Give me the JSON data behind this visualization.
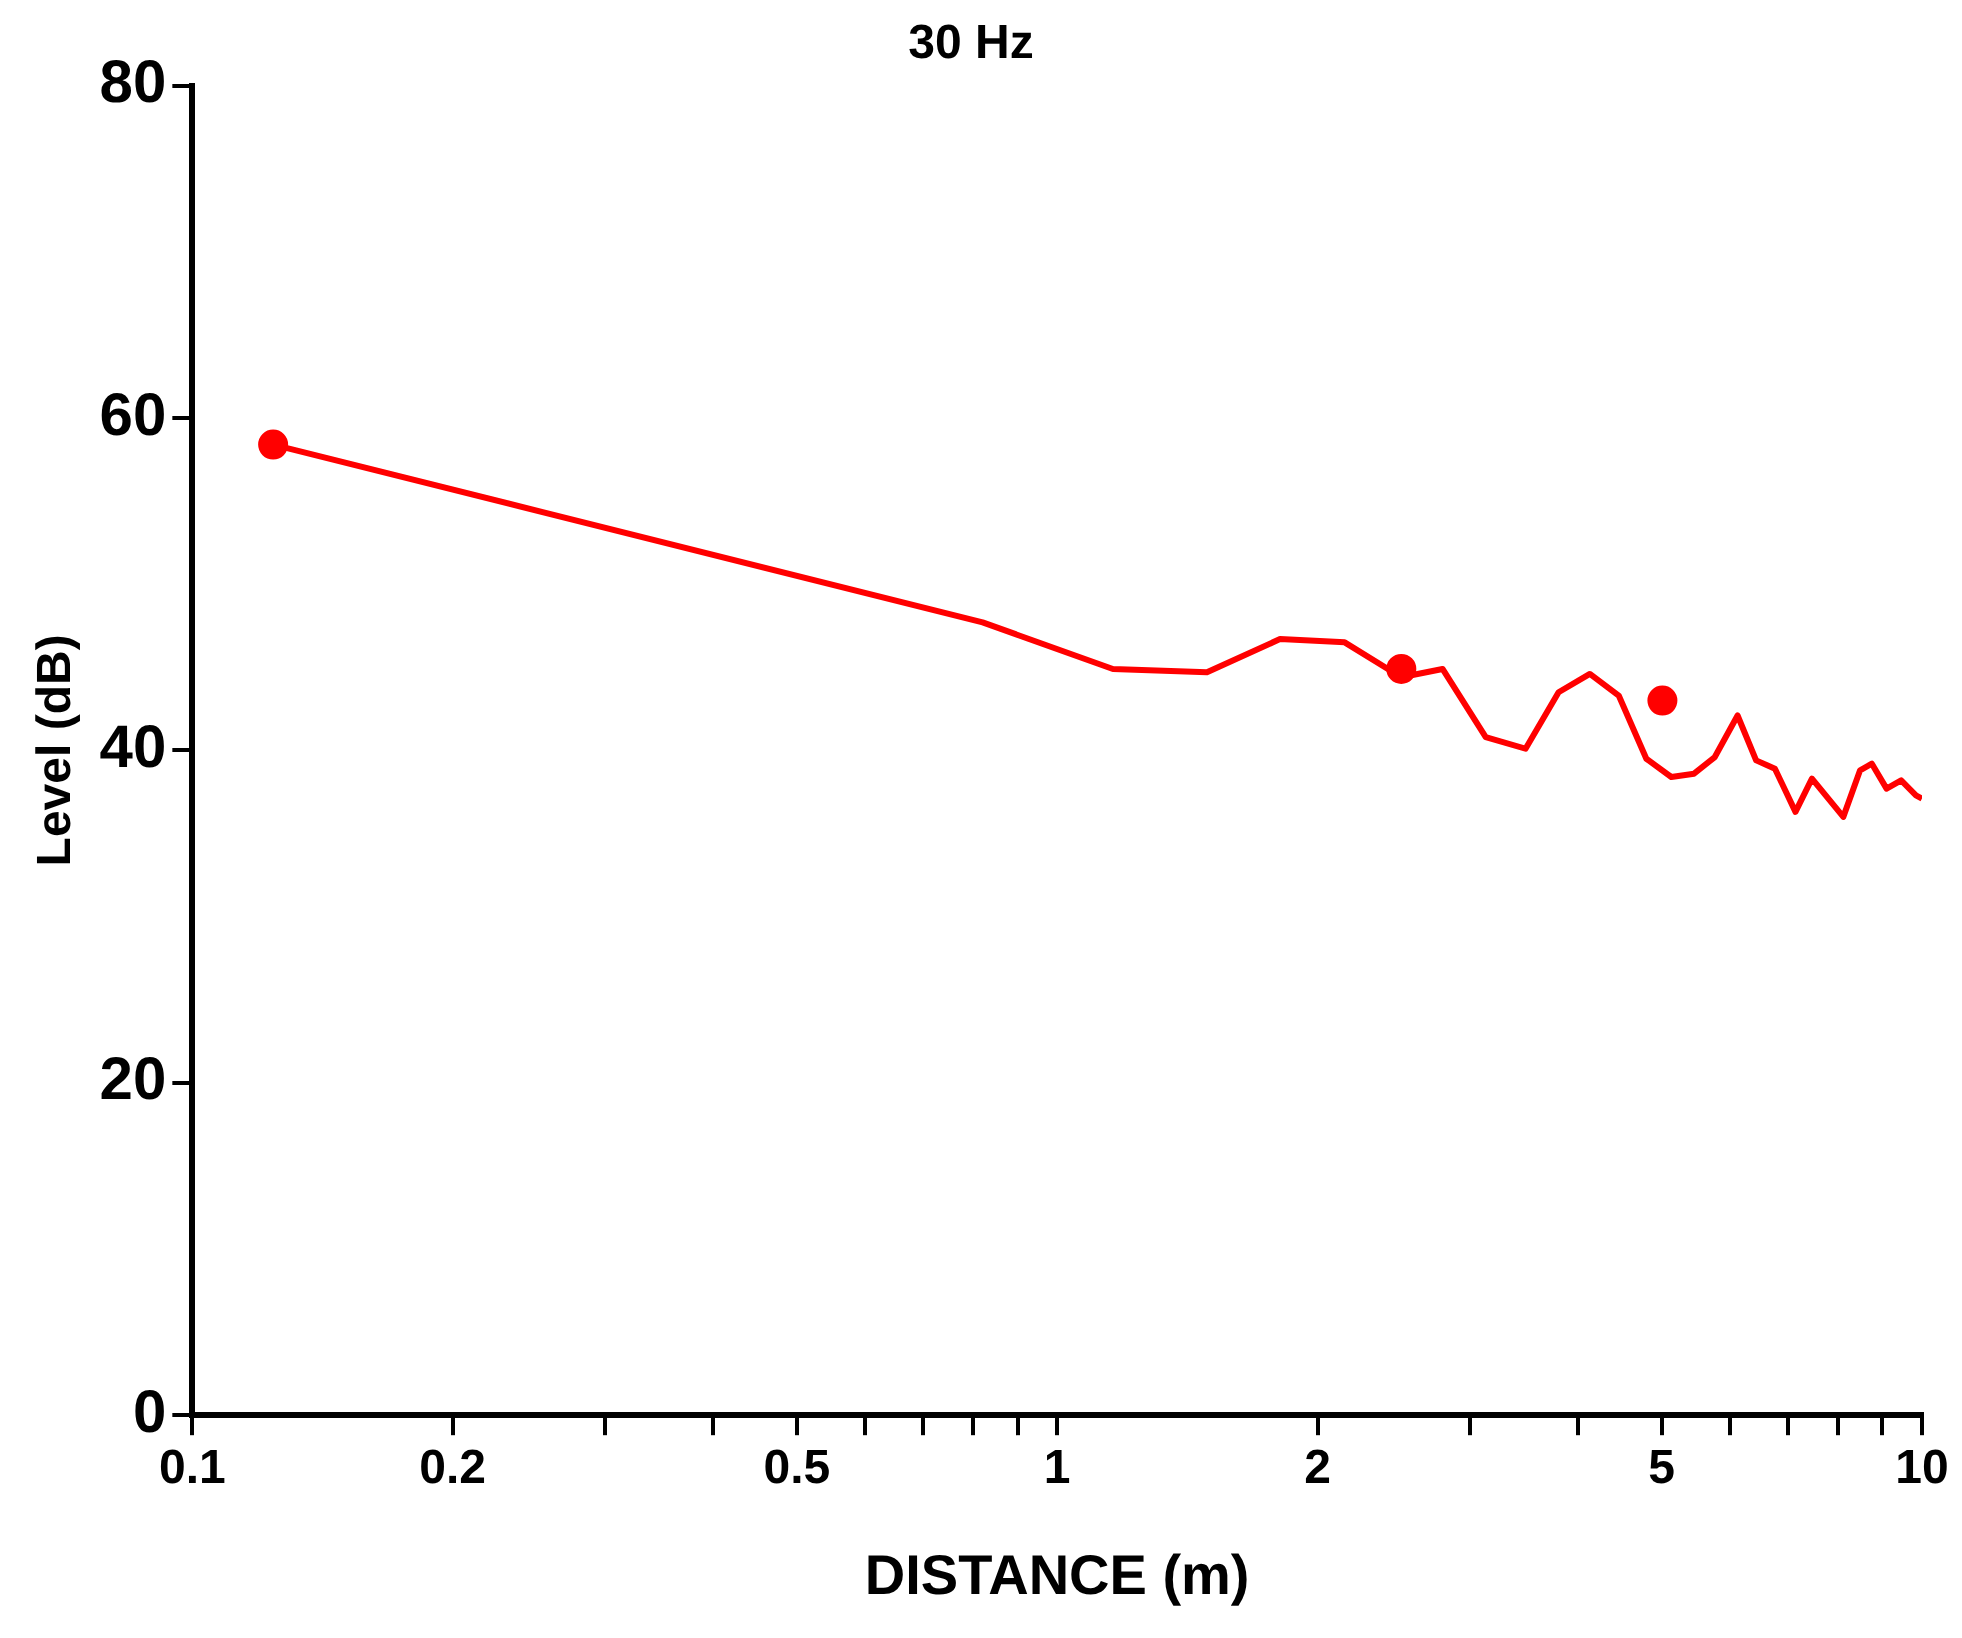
{
  "chart_data": {
    "type": "line",
    "title": "30 Hz",
    "xlabel": "DISTANCE (m)",
    "ylabel": "Level (dB)",
    "log": "x",
    "xlim": [
      0.1,
      10
    ],
    "xticks": [
      0.1,
      0.2,
      {
        "value": 0.3,
        "label": null
      },
      {
        "value": 0.4,
        "label": null
      },
      0.5,
      {
        "value": 0.6,
        "label": null
      },
      {
        "value": 0.7,
        "label": null
      },
      {
        "value": 0.8,
        "label": null
      },
      {
        "value": 0.9,
        "label": null
      },
      1,
      2,
      {
        "value": 3,
        "label": null
      },
      {
        "value": 4,
        "label": null
      },
      5,
      {
        "value": 6,
        "label": null
      },
      {
        "value": 7,
        "label": null
      },
      {
        "value": 8,
        "label": null
      },
      {
        "value": 9,
        "label": null
      },
      10
    ],
    "ylim": [
      0,
      80
    ],
    "yticks": [
      0,
      20,
      40,
      60,
      80
    ],
    "marker": "none",
    "line_style": "solid",
    "series": [
      {
        "color": "#ff0000",
        "x": [
          0.124,
          0.82,
          1.16,
          1.49,
          1.81,
          2.15,
          2.5,
          2.79,
          3.13,
          3.48,
          3.8,
          4.13,
          4.46,
          4.8,
          5.13,
          5.45,
          5.76,
          6.12,
          6.43,
          6.76,
          7.14,
          7.46,
          8.11,
          8.48,
          8.75,
          9.1,
          9.46,
          9.84,
          10
        ],
        "values": [
          58.4,
          47.7,
          44.9,
          44.7,
          46.7,
          46.5,
          44.4,
          44.9,
          40.8,
          40.1,
          43.5,
          44.6,
          43.3,
          39.5,
          38.4,
          38.6,
          39.6,
          42.1,
          39.4,
          38.9,
          36.3,
          38.3,
          36,
          38.8,
          39.2,
          37.7,
          38.2,
          37.3,
          37.1
        ]
      },
      {
        "type": "scatter",
        "marker": "circle",
        "color": "#ff0000",
        "x": [
          0.124,
          2.5,
          5.01
        ],
        "values": [
          58.4,
          44.9,
          43
        ]
      }
    ]
  }
}
